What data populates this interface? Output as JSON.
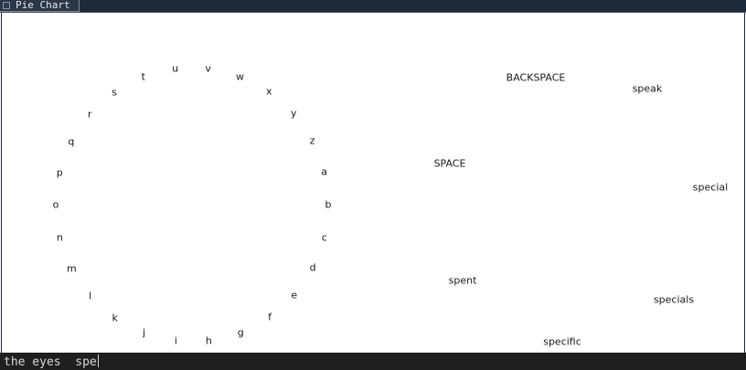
{
  "window": {
    "title": "Pie Chart"
  },
  "letters": [
    "a",
    "b",
    "c",
    "d",
    "e",
    "f",
    "g",
    "h",
    "i",
    "j",
    "k",
    "l",
    "m",
    "n",
    "o",
    "p",
    "q",
    "r",
    "s",
    "t",
    "u",
    "v",
    "w",
    "x",
    "y",
    "z"
  ],
  "options": {
    "backspace": "BACKSPACE",
    "space": "SPACE",
    "speak": "speak",
    "special": "special",
    "spent": "spent",
    "specials": "specials",
    "specific": "specific"
  },
  "input": {
    "text": "the eyes  spe"
  },
  "colors": {
    "titlebar": "#1f2a38",
    "input_bar": "#1f1f1f",
    "text": "#1a1a1a"
  }
}
